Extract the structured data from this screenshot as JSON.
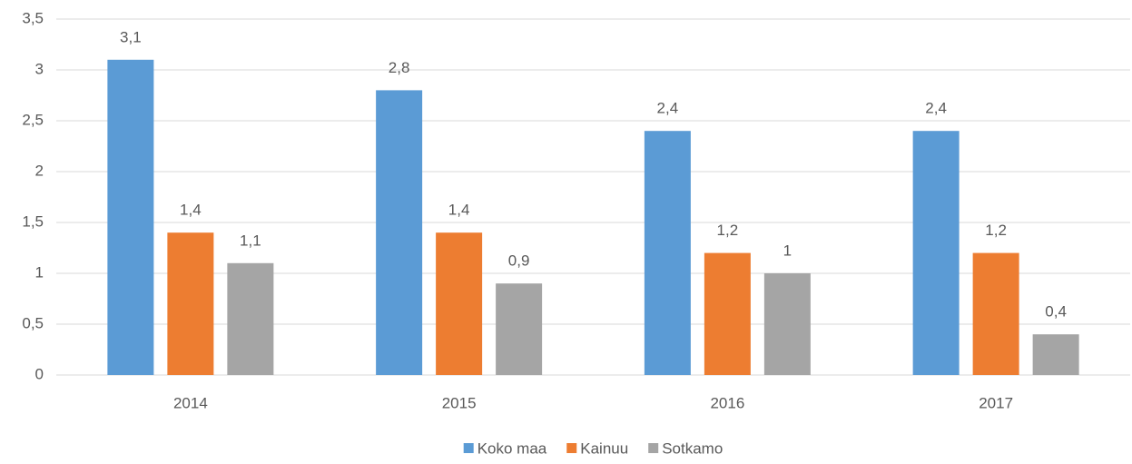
{
  "chart_data": {
    "type": "bar",
    "categories": [
      "2014",
      "2015",
      "2016",
      "2017"
    ],
    "series": [
      {
        "name": "Koko maa",
        "color": "#5b9bd5",
        "values": [
          3.1,
          2.8,
          2.4,
          2.4
        ],
        "value_labels": [
          "3,1",
          "2,8",
          "2,4",
          "2,4"
        ]
      },
      {
        "name": "Kainuu",
        "color": "#ed7d31",
        "values": [
          1.4,
          1.4,
          1.2,
          1.2
        ],
        "value_labels": [
          "1,4",
          "1,4",
          "1,2",
          "1,2"
        ]
      },
      {
        "name": "Sotkamo",
        "color": "#a5a5a5",
        "values": [
          1.1,
          0.9,
          1,
          0.4
        ],
        "value_labels": [
          "1,1",
          "0,9",
          "1",
          "0,4"
        ]
      }
    ],
    "ylim": [
      0,
      3.5
    ],
    "yticks": [
      0,
      {
        "value": 0.5,
        "label": "0,5"
      },
      1,
      {
        "value": 1.5,
        "label": "1,5"
      },
      2,
      {
        "value": 2.5,
        "label": "2,5"
      },
      3,
      {
        "value": 3.5,
        "label": "3,5"
      }
    ],
    "grid": true,
    "legend": "bottom"
  }
}
